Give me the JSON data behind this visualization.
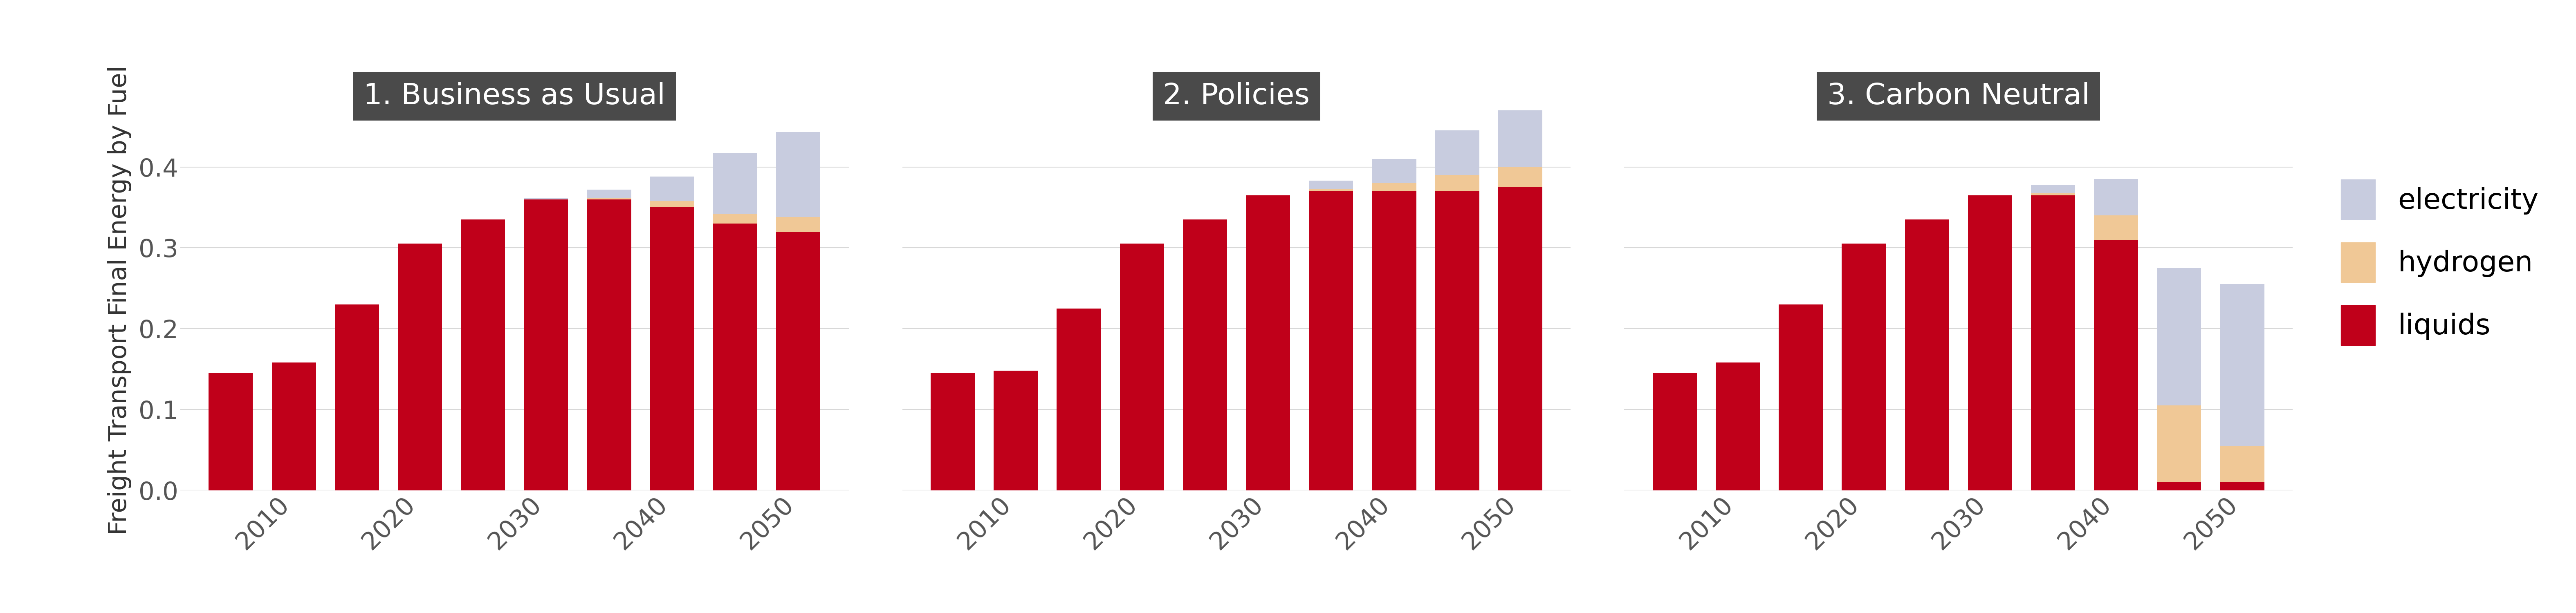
{
  "scenarios": [
    "1. Business as Usual",
    "2. Policies",
    "3. Carbon Neutral"
  ],
  "years": [
    2005,
    2010,
    2015,
    2020,
    2025,
    2030,
    2035,
    2040,
    2045,
    2050
  ],
  "scenario1": {
    "liquids": [
      0.145,
      0.158,
      0.23,
      0.305,
      0.335,
      0.36,
      0.36,
      0.35,
      0.33,
      0.32
    ],
    "hydrogen": [
      0.0,
      0.0,
      0.0,
      0.0,
      0.0,
      0.0,
      0.002,
      0.008,
      0.012,
      0.018
    ],
    "electricity": [
      0.0,
      0.0,
      0.0,
      0.0,
      0.0,
      0.002,
      0.01,
      0.03,
      0.075,
      0.105
    ]
  },
  "scenario2": {
    "liquids": [
      0.145,
      0.148,
      0.225,
      0.305,
      0.335,
      0.365,
      0.37,
      0.37,
      0.37,
      0.375
    ],
    "hydrogen": [
      0.0,
      0.0,
      0.0,
      0.0,
      0.0,
      0.0,
      0.003,
      0.01,
      0.02,
      0.025
    ],
    "electricity": [
      0.0,
      0.0,
      0.0,
      0.0,
      0.0,
      0.0,
      0.01,
      0.03,
      0.055,
      0.07
    ]
  },
  "scenario3": {
    "liquids": [
      0.145,
      0.158,
      0.23,
      0.305,
      0.335,
      0.365,
      0.365,
      0.31,
      0.01,
      0.01
    ],
    "hydrogen": [
      0.0,
      0.0,
      0.0,
      0.0,
      0.0,
      0.0,
      0.003,
      0.03,
      0.095,
      0.045
    ],
    "electricity": [
      0.0,
      0.0,
      0.0,
      0.0,
      0.0,
      0.0,
      0.01,
      0.045,
      0.17,
      0.2
    ]
  },
  "colors": {
    "liquids": "#C0001A",
    "hydrogen": "#F0C896",
    "electricity": "#C8CCDF"
  },
  "ylabel": "Freight Transport Final Energy by Fuel",
  "ylim": [
    0.0,
    0.47
  ],
  "yticks": [
    0.0,
    0.1,
    0.2,
    0.3,
    0.4
  ],
  "background_color": "#FFFFFF",
  "panel_bg": "#FFFFFF",
  "title_bg": "#4A4A4A",
  "title_fg": "#FFFFFF",
  "grid_color": "#D8D8D8",
  "bar_width": 3.5,
  "title_fontsize": 52,
  "label_fontsize": 44,
  "tick_fontsize": 44,
  "legend_fontsize": 50
}
